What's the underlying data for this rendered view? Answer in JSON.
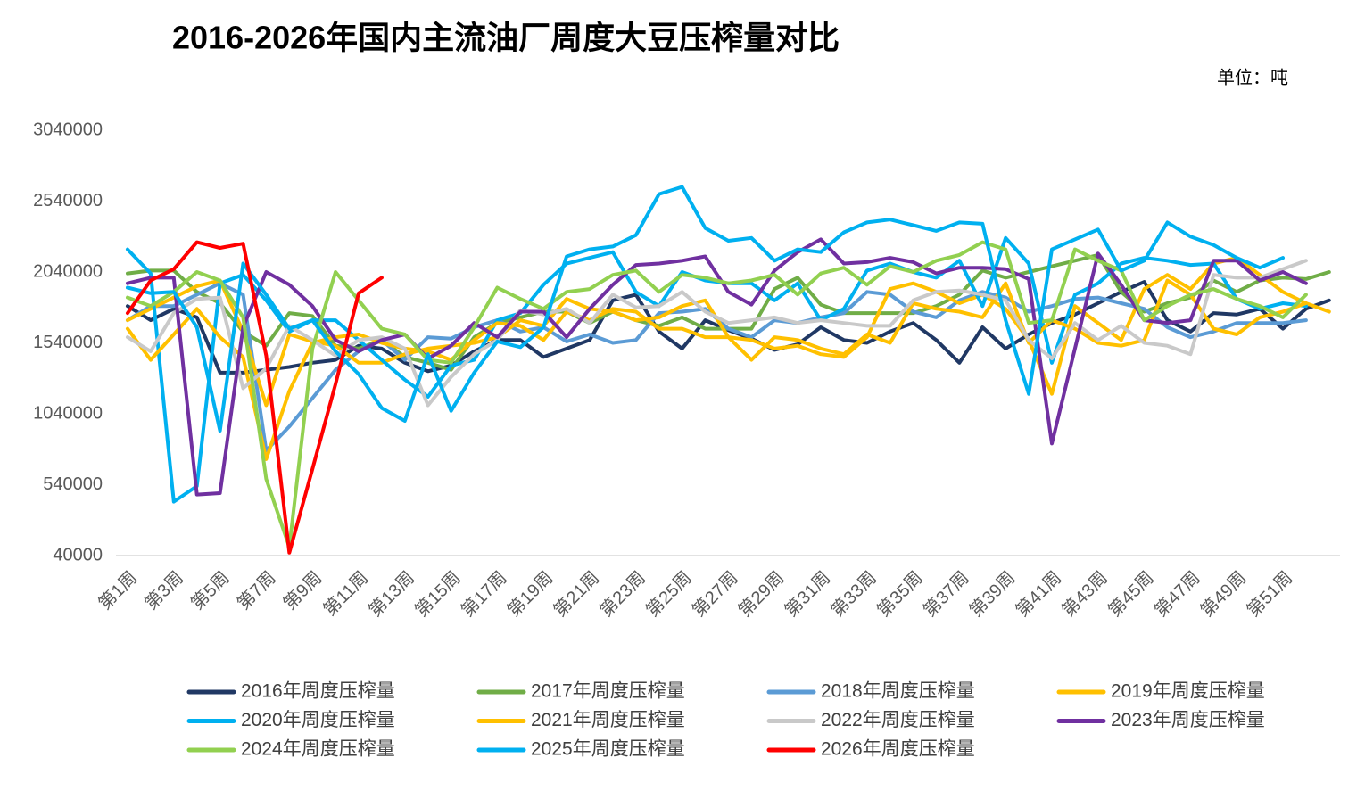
{
  "chart_data": {
    "type": "line",
    "title": "2016-2026年国内主流油厂周度大豆压榨量对比",
    "unit_label": "单位：吨",
    "categories": [
      "第1周",
      null,
      "第3周",
      null,
      "第5周",
      null,
      "第7周",
      null,
      "第9周",
      null,
      "第11周",
      null,
      "第13周",
      null,
      "第15周",
      null,
      "第17周",
      null,
      "第19周",
      null,
      "第21周",
      null,
      "第23周",
      null,
      "第25周",
      null,
      "第27周",
      null,
      "第29周",
      null,
      "第31周",
      null,
      "第33周",
      null,
      "第35周",
      null,
      "第37周",
      null,
      "第39周",
      null,
      "第41周",
      null,
      "第43周",
      null,
      "第45周",
      null,
      "第47周",
      null,
      "第49周",
      null,
      "第51周",
      null,
      null
    ],
    "ylim": [
      40000,
      3040000
    ],
    "yticks": [
      40000,
      540000,
      1040000,
      1540000,
      2040000,
      2540000,
      3040000
    ],
    "grid": false,
    "series": [
      {
        "name": "2016年周度压榨量",
        "color": "#203864",
        "values": [
          1800000,
          1700000,
          1780000,
          1720000,
          1330000,
          1330000,
          1350000,
          1370000,
          1400000,
          1420000,
          1520000,
          1500000,
          1400000,
          1340000,
          1380000,
          1480000,
          1560000,
          1560000,
          1440000,
          1500000,
          1560000,
          1840000,
          1880000,
          1620000,
          1500000,
          1700000,
          1630000,
          1570000,
          1490000,
          1530000,
          1650000,
          1560000,
          1540000,
          1620000,
          1680000,
          1560000,
          1400000,
          1650000,
          1500000,
          1600000,
          1680000,
          1740000,
          1820000,
          1900000,
          1970000,
          1700000,
          1620000,
          1750000,
          1740000,
          1780000,
          1640000,
          1780000,
          1840000
        ]
      },
      {
        "name": "2017年周度压榨量",
        "color": "#70ad47",
        "values": [
          2030000,
          2050000,
          2050000,
          1900000,
          1820000,
          1620000,
          1520000,
          1750000,
          1730000,
          1520000,
          1500000,
          1560000,
          1440000,
          1400000,
          1350000,
          1580000,
          1680000,
          1720000,
          1760000,
          1760000,
          1680000,
          1760000,
          1700000,
          1660000,
          1720000,
          1640000,
          1640000,
          1640000,
          1920000,
          2000000,
          1810000,
          1750000,
          1750000,
          1750000,
          1750000,
          1800000,
          1880000,
          2050000,
          2000000,
          2040000,
          2080000,
          2120000,
          2160000,
          1900000,
          1760000,
          1820000,
          1860000,
          1980000,
          1900000,
          1980000,
          2000000,
          1990000,
          2040000
        ]
      },
      {
        "name": "2018年周度压榨量",
        "color": "#5b9bd5",
        "values": [
          1700000,
          1800000,
          1800000,
          1880000,
          1960000,
          1880000,
          780000,
          950000,
          1150000,
          1350000,
          1480000,
          1560000,
          1420000,
          1580000,
          1570000,
          1650000,
          1700000,
          1620000,
          1650000,
          1550000,
          1600000,
          1540000,
          1560000,
          1750000,
          1760000,
          1780000,
          1640000,
          1580000,
          1700000,
          1680000,
          1720000,
          1750000,
          1900000,
          1880000,
          1760000,
          1720000,
          1840000,
          1900000,
          1860000,
          1760000,
          1800000,
          1850000,
          1860000,
          1820000,
          1780000,
          1650000,
          1580000,
          1620000,
          1680000,
          1680000,
          1680000,
          1700000,
          null
        ]
      },
      {
        "name": "2019年周度压榨量",
        "color": "#ffc000",
        "values": [
          1700000,
          1780000,
          1860000,
          1940000,
          1980000,
          1620000,
          1100000,
          1600000,
          1550000,
          1520000,
          1400000,
          1400000,
          1460000,
          1500000,
          1520000,
          1540000,
          1580000,
          1700000,
          1660000,
          1850000,
          1780000,
          1760000,
          1700000,
          1720000,
          1800000,
          1840000,
          1580000,
          1560000,
          1500000,
          1520000,
          1460000,
          1440000,
          1580000,
          1920000,
          1960000,
          1900000,
          1820000,
          1880000,
          1780000,
          1560000,
          1180000,
          1800000,
          1680000,
          1560000,
          1920000,
          2020000,
          1920000,
          2100000,
          2140000,
          2020000,
          1900000,
          1820000,
          1760000
        ]
      },
      {
        "name": "2020年周度压榨量",
        "color": "#00b0f0",
        "values": [
          2200000,
          2030000,
          420000,
          530000,
          1960000,
          2020000,
          1840000,
          1620000,
          1700000,
          1700000,
          1560000,
          1420000,
          1280000,
          1160000,
          1380000,
          1420000,
          1700000,
          1750000,
          1950000,
          2100000,
          2140000,
          2180000,
          1900000,
          1800000,
          2040000,
          1980000,
          1960000,
          1960000,
          1840000,
          1960000,
          1700000,
          1780000,
          2050000,
          2100000,
          2040000,
          2000000,
          2120000,
          1800000,
          2280000,
          2100000,
          1400000,
          1880000,
          1960000,
          2100000,
          2140000,
          2120000,
          2090000,
          2100000,
          1850000,
          1780000,
          1820000,
          1800000,
          null
        ]
      },
      {
        "name": "2021年周度压榨量",
        "color": "#ffc000",
        "values": [
          1640000,
          1420000,
          1600000,
          1780000,
          1580000,
          1440000,
          720000,
          1200000,
          1540000,
          1580000,
          1600000,
          1540000,
          1500000,
          1480000,
          1420000,
          1560000,
          1680000,
          1660000,
          1560000,
          1760000,
          1700000,
          1780000,
          1760000,
          1640000,
          1640000,
          1580000,
          1580000,
          1420000,
          1580000,
          1560000,
          1500000,
          1460000,
          1600000,
          1540000,
          1820000,
          1780000,
          1760000,
          1720000,
          1960000,
          1540000,
          1700000,
          1640000,
          1540000,
          1520000,
          1560000,
          1980000,
          1880000,
          1640000,
          1600000,
          1720000,
          1760000,
          1820000,
          null
        ]
      },
      {
        "name": "2022年周度压榨量",
        "color": "#c9c9c9",
        "values": [
          1580000,
          1480000,
          1750000,
          1850000,
          1860000,
          1220000,
          1360000,
          1660000,
          1560000,
          1450000,
          1560000,
          1580000,
          1500000,
          1100000,
          1300000,
          1460000,
          1560000,
          1770000,
          1740000,
          1780000,
          1680000,
          1880000,
          1790000,
          1800000,
          1900000,
          1760000,
          1680000,
          1700000,
          1720000,
          1680000,
          1700000,
          1680000,
          1660000,
          1660000,
          1840000,
          1900000,
          1910000,
          1880000,
          1840000,
          1560000,
          1430000,
          1680000,
          1560000,
          1660000,
          1540000,
          1520000,
          1460000,
          2020000,
          2000000,
          2000000,
          2060000,
          2120000,
          null
        ]
      },
      {
        "name": "2023年周度压榨量",
        "color": "#7030a0",
        "values": [
          1960000,
          2000000,
          2000000,
          470000,
          480000,
          1650000,
          2040000,
          1950000,
          1800000,
          1560000,
          1480000,
          1560000,
          1600000,
          1430000,
          1520000,
          1680000,
          1580000,
          1760000,
          1760000,
          1580000,
          1780000,
          1950000,
          2090000,
          2100000,
          2120000,
          2150000,
          1900000,
          1810000,
          2050000,
          2180000,
          2270000,
          2100000,
          2110000,
          2140000,
          2110000,
          2030000,
          2070000,
          2070000,
          2060000,
          1990000,
          830000,
          1500000,
          2170000,
          1950000,
          1700000,
          1680000,
          1700000,
          2120000,
          2120000,
          1980000,
          2040000,
          1960000,
          null
        ]
      },
      {
        "name": "2024年周度压榨量",
        "color": "#92d050",
        "values": [
          1860000,
          1800000,
          1900000,
          2040000,
          1980000,
          1720000,
          580000,
          100000,
          1500000,
          2040000,
          1840000,
          1640000,
          1600000,
          1420000,
          1400000,
          1650000,
          1930000,
          1850000,
          1780000,
          1900000,
          1920000,
          2020000,
          2050000,
          1900000,
          2020000,
          2000000,
          1960000,
          1980000,
          2020000,
          1880000,
          2030000,
          2070000,
          1950000,
          2080000,
          2040000,
          2120000,
          2160000,
          2250000,
          2200000,
          1680000,
          1700000,
          2200000,
          2120000,
          2050000,
          1700000,
          1800000,
          1880000,
          1920000,
          1850000,
          1800000,
          1720000,
          1880000,
          null
        ]
      },
      {
        "name": "2025年周度压榨量",
        "color": "#00b0f0",
        "values": [
          1930000,
          1890000,
          1900000,
          1650000,
          920000,
          2100000,
          1880000,
          1640000,
          1700000,
          1480000,
          1320000,
          1080000,
          990000,
          1460000,
          1060000,
          1330000,
          1550000,
          1510000,
          1650000,
          2150000,
          2200000,
          2220000,
          2300000,
          2590000,
          2640000,
          2350000,
          2260000,
          2280000,
          2120000,
          2200000,
          2180000,
          2320000,
          2390000,
          2410000,
          2370000,
          2330000,
          2390000,
          2380000,
          1700000,
          1180000,
          2200000,
          2270000,
          2340000,
          2050000,
          2120000,
          2390000,
          2290000,
          2230000,
          2140000,
          2070000,
          2140000,
          null,
          null
        ]
      },
      {
        "name": "2026年周度压榨量",
        "color": "#ff0000",
        "values": [
          1750000,
          1980000,
          2060000,
          2250000,
          2210000,
          2240000,
          1450000,
          60000,
          650000,
          1250000,
          1890000,
          2000000,
          null,
          null,
          null,
          null,
          null,
          null,
          null,
          null,
          null,
          null,
          null,
          null,
          null,
          null,
          null,
          null,
          null,
          null,
          null,
          null,
          null,
          null,
          null,
          null,
          null,
          null,
          null,
          null,
          null,
          null,
          null,
          null,
          null,
          null,
          null,
          null,
          null,
          null,
          null,
          null,
          null
        ]
      }
    ]
  }
}
